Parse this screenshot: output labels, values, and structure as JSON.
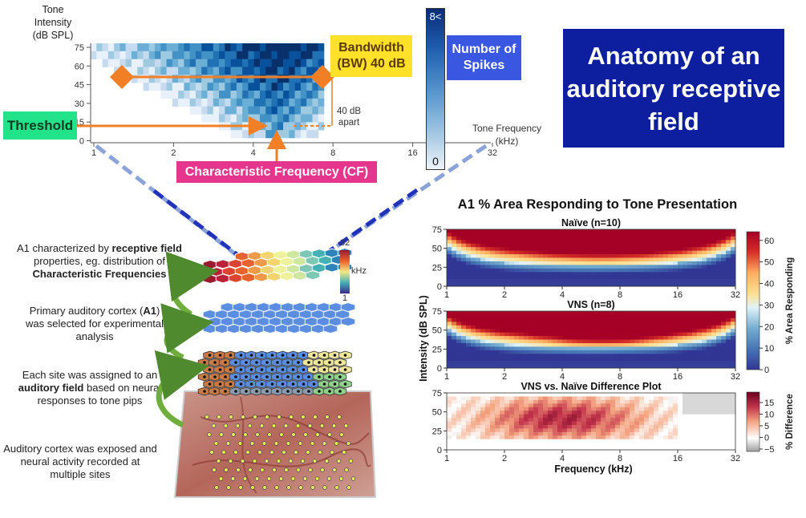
{
  "title": "Anatomy of an auditory receptive field",
  "receptive_field": {
    "ylabel_lines": [
      "Tone",
      "Intensity",
      "(dB SPL)"
    ],
    "yticks": [
      "75",
      "60",
      "45",
      "30",
      "15",
      "0"
    ],
    "xticks": [
      "1",
      "2",
      "4",
      "8",
      "16",
      "32"
    ],
    "xlabel_lines": [
      "Tone Frequency",
      "(kHz)"
    ],
    "bandwidth": "Bandwidth (BW) 40 dB",
    "apart_lines": [
      "40 dB",
      "apart"
    ],
    "threshold": "Threshold",
    "cf": "Characteristic Frequency (CF)",
    "colorbar_top": "8<",
    "colorbar_bottom": "0",
    "spikes": "Number of Spikes"
  },
  "steps": [
    {
      "pre": "A1 characterized by ",
      "bold": "receptive field",
      "mid": " properties, eg. distribution of ",
      "bold2": "Characteristic Frequencies",
      "post": ""
    },
    {
      "pre": "Primary auditory cortex (",
      "bold": "A1",
      "mid": ")",
      "bold2": "",
      "post": "was selected for experimental analysis"
    },
    {
      "pre": "Each site was assigned to an ",
      "bold": "auditory field",
      "mid": " based on neural responses to tone pips",
      "bold2": "",
      "post": ""
    },
    {
      "pre": "Auditory cortex was exposed and neural activity recorded at multiple sites",
      "bold": "",
      "mid": "",
      "bold2": "",
      "post": ""
    }
  ],
  "cf_colorbar": {
    "top": "32",
    "unit": "kHz",
    "bottom": "1"
  },
  "chart_data": {
    "type": "heatmap",
    "title": "A1 % Area Responding to Tone Presentation",
    "xlabel": "Frequency (kHz)",
    "ylabel": "Intensity (dB SPL)",
    "x_scale": "log2",
    "xlim": [
      1,
      32
    ],
    "ylim": [
      0,
      75
    ],
    "xticks": [
      "1",
      "2",
      "4",
      "8",
      "16",
      "32"
    ],
    "yticks": [
      "0",
      "25",
      "50",
      "75"
    ],
    "panels": [
      {
        "title": "Naïve (n=10)",
        "colorbar_label": "% Area Responding",
        "colorbar_ticks": [
          "0",
          "10",
          "20",
          "30",
          "40",
          "50",
          "60"
        ],
        "peak_value": 60
      },
      {
        "title": "VNS (n=8)",
        "colorbar_label": "% Area Responding",
        "colorbar_ticks": [
          "0",
          "10",
          "20",
          "30",
          "40",
          "50",
          "60"
        ],
        "peak_value": 65
      },
      {
        "title": "VNS vs. Naïve Difference Plot",
        "colorbar_label": "% Difference",
        "colorbar_ticks": [
          "−5",
          "0",
          "5",
          "10",
          "15"
        ],
        "peak_value": 18
      }
    ]
  },
  "colors": {
    "title_bg": "#0d1f9e",
    "bandwidth": "#ffe12a",
    "spikes": "#3a57e2",
    "threshold": "#22e38a",
    "cf": "#e5358d",
    "arrow": "#f07f26",
    "dash_line": "#2233bb"
  }
}
